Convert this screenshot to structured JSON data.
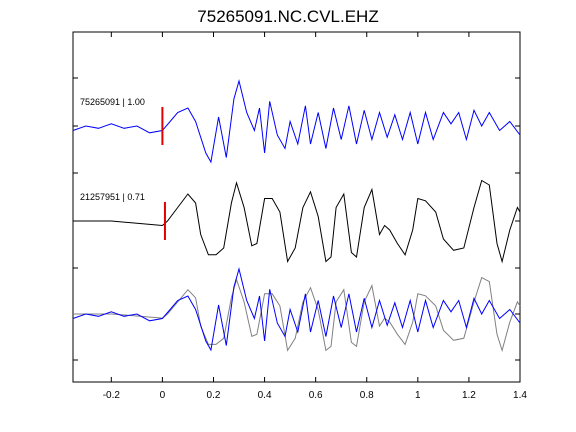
{
  "chart_data": {
    "type": "line",
    "title": "75265091.NC.CVL.EHZ",
    "xlabel": "",
    "ylabel": "",
    "xlim": [
      -0.35,
      1.4
    ],
    "x_ticks": [
      -0.2,
      0,
      0.2,
      0.4,
      0.6,
      0.8,
      1,
      1.2,
      1.4
    ],
    "x_tick_labels": [
      "-0.2",
      "0",
      "0.2",
      "0.4",
      "0.6",
      "0.8",
      "1",
      "1.2",
      "1.4"
    ],
    "grid": false,
    "legend": "none",
    "panels": [
      {
        "label": "75265091 | 1.00",
        "pick_time": 0.0,
        "color": "#0000ff",
        "series": [
          {
            "x": -0.35,
            "y": -0.1
          },
          {
            "x": -0.3,
            "y": 0.0
          },
          {
            "x": -0.25,
            "y": -0.05
          },
          {
            "x": -0.2,
            "y": 0.05
          },
          {
            "x": -0.15,
            "y": -0.05
          },
          {
            "x": -0.1,
            "y": 0.0
          },
          {
            "x": -0.05,
            "y": -0.15
          },
          {
            "x": 0.0,
            "y": -0.1
          },
          {
            "x": 0.03,
            "y": 0.1
          },
          {
            "x": 0.06,
            "y": 0.3
          },
          {
            "x": 0.1,
            "y": 0.4
          },
          {
            "x": 0.13,
            "y": 0.1
          },
          {
            "x": 0.17,
            "y": -0.6
          },
          {
            "x": 0.19,
            "y": -0.8
          },
          {
            "x": 0.22,
            "y": 0.2
          },
          {
            "x": 0.25,
            "y": -0.7
          },
          {
            "x": 0.28,
            "y": 0.6
          },
          {
            "x": 0.3,
            "y": 1.0
          },
          {
            "x": 0.33,
            "y": 0.3
          },
          {
            "x": 0.36,
            "y": -0.1
          },
          {
            "x": 0.38,
            "y": 0.4
          },
          {
            "x": 0.4,
            "y": -0.6
          },
          {
            "x": 0.42,
            "y": 0.55
          },
          {
            "x": 0.45,
            "y": -0.2
          },
          {
            "x": 0.48,
            "y": -0.5
          },
          {
            "x": 0.5,
            "y": 0.1
          },
          {
            "x": 0.53,
            "y": -0.4
          },
          {
            "x": 0.56,
            "y": 0.45
          },
          {
            "x": 0.58,
            "y": -0.4
          },
          {
            "x": 0.61,
            "y": 0.3
          },
          {
            "x": 0.64,
            "y": -0.5
          },
          {
            "x": 0.67,
            "y": 0.4
          },
          {
            "x": 0.7,
            "y": -0.3
          },
          {
            "x": 0.73,
            "y": 0.45
          },
          {
            "x": 0.76,
            "y": -0.4
          },
          {
            "x": 0.79,
            "y": 0.35
          },
          {
            "x": 0.82,
            "y": -0.3
          },
          {
            "x": 0.85,
            "y": 0.3
          },
          {
            "x": 0.88,
            "y": -0.25
          },
          {
            "x": 0.91,
            "y": 0.25
          },
          {
            "x": 0.94,
            "y": -0.3
          },
          {
            "x": 0.97,
            "y": 0.3
          },
          {
            "x": 1.0,
            "y": -0.4
          },
          {
            "x": 1.03,
            "y": 0.3
          },
          {
            "x": 1.06,
            "y": -0.3
          },
          {
            "x": 1.1,
            "y": 0.3
          },
          {
            "x": 1.13,
            "y": 0.05
          },
          {
            "x": 1.16,
            "y": 0.3
          },
          {
            "x": 1.19,
            "y": -0.3
          },
          {
            "x": 1.22,
            "y": 0.35
          },
          {
            "x": 1.25,
            "y": 0.0
          },
          {
            "x": 1.28,
            "y": 0.3
          },
          {
            "x": 1.32,
            "y": -0.1
          },
          {
            "x": 1.36,
            "y": 0.1
          },
          {
            "x": 1.4,
            "y": -0.2
          }
        ]
      },
      {
        "label": "21257951 | 0.71",
        "pick_time": 0.01,
        "color": "#000000",
        "series": [
          {
            "x": -0.35,
            "y": 0.0
          },
          {
            "x": -0.2,
            "y": 0.0
          },
          {
            "x": -0.1,
            "y": -0.05
          },
          {
            "x": 0.0,
            "y": -0.1
          },
          {
            "x": 0.02,
            "y": 0.0
          },
          {
            "x": 0.06,
            "y": 0.3
          },
          {
            "x": 0.1,
            "y": 0.6
          },
          {
            "x": 0.13,
            "y": 0.4
          },
          {
            "x": 0.15,
            "y": -0.3
          },
          {
            "x": 0.18,
            "y": -0.75
          },
          {
            "x": 0.21,
            "y": -0.75
          },
          {
            "x": 0.24,
            "y": -0.6
          },
          {
            "x": 0.27,
            "y": 0.4
          },
          {
            "x": 0.29,
            "y": 0.85
          },
          {
            "x": 0.32,
            "y": 0.3
          },
          {
            "x": 0.35,
            "y": -0.55
          },
          {
            "x": 0.37,
            "y": -0.5
          },
          {
            "x": 0.4,
            "y": 0.5
          },
          {
            "x": 0.43,
            "y": 0.5
          },
          {
            "x": 0.46,
            "y": 0.2
          },
          {
            "x": 0.49,
            "y": -0.9
          },
          {
            "x": 0.52,
            "y": -0.6
          },
          {
            "x": 0.55,
            "y": 0.3
          },
          {
            "x": 0.58,
            "y": 0.65
          },
          {
            "x": 0.61,
            "y": 0.1
          },
          {
            "x": 0.64,
            "y": -0.9
          },
          {
            "x": 0.66,
            "y": -0.8
          },
          {
            "x": 0.68,
            "y": 0.3
          },
          {
            "x": 0.71,
            "y": 0.6
          },
          {
            "x": 0.74,
            "y": -0.7
          },
          {
            "x": 0.76,
            "y": -0.8
          },
          {
            "x": 0.79,
            "y": 0.3
          },
          {
            "x": 0.82,
            "y": 0.7
          },
          {
            "x": 0.85,
            "y": -0.3
          },
          {
            "x": 0.87,
            "y": -0.1
          },
          {
            "x": 0.89,
            "y": -0.2
          },
          {
            "x": 0.92,
            "y": -0.5
          },
          {
            "x": 0.95,
            "y": -0.75
          },
          {
            "x": 0.98,
            "y": -0.2
          },
          {
            "x": 1.0,
            "y": 0.5
          },
          {
            "x": 1.03,
            "y": 0.45
          },
          {
            "x": 1.07,
            "y": 0.2
          },
          {
            "x": 1.1,
            "y": -0.4
          },
          {
            "x": 1.14,
            "y": -0.65
          },
          {
            "x": 1.18,
            "y": -0.6
          },
          {
            "x": 1.22,
            "y": 0.3
          },
          {
            "x": 1.25,
            "y": 0.9
          },
          {
            "x": 1.28,
            "y": 0.8
          },
          {
            "x": 1.31,
            "y": -0.5
          },
          {
            "x": 1.33,
            "y": -0.9
          },
          {
            "x": 1.36,
            "y": -0.2
          },
          {
            "x": 1.39,
            "y": 0.3
          },
          {
            "x": 1.4,
            "y": 0.2
          }
        ]
      },
      {
        "label": "",
        "overlay": true,
        "series_colors": [
          "#808080",
          "#0000ff"
        ]
      }
    ]
  }
}
